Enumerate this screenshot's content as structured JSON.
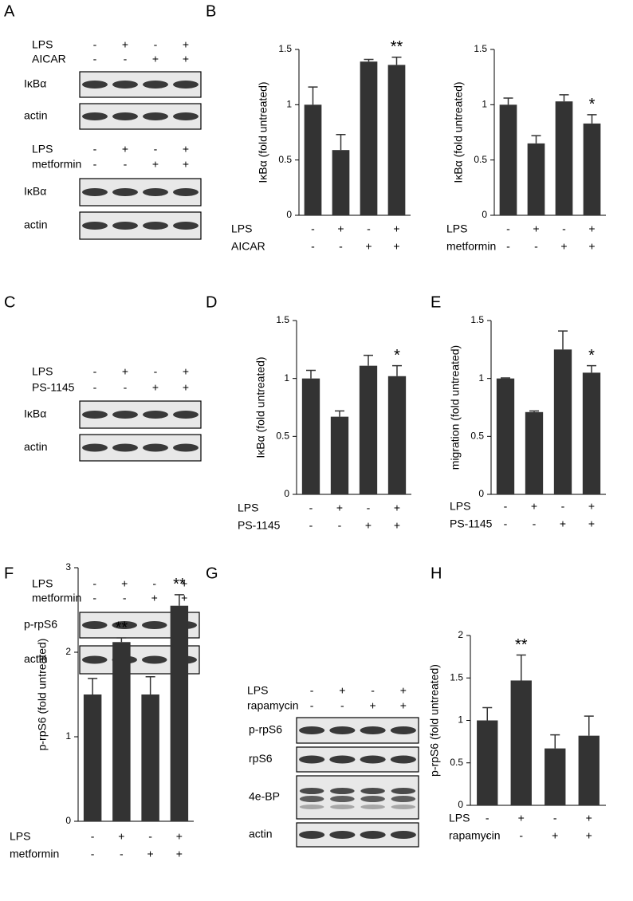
{
  "panels": [
    "A",
    "B",
    "C",
    "D",
    "E",
    "F",
    "G",
    "H"
  ],
  "blots": [
    {
      "conditions": [
        {
          "name": "LPS",
          "signs": [
            "-",
            "+",
            "-",
            "+"
          ]
        },
        {
          "name": "AICAR",
          "signs": [
            "-",
            "-",
            "+",
            "+"
          ]
        }
      ],
      "rows": [
        "IκBα",
        "actin"
      ]
    },
    {
      "conditions": [
        {
          "name": "LPS",
          "signs": [
            "-",
            "+",
            "-",
            "+"
          ]
        },
        {
          "name": "metformin",
          "signs": [
            "-",
            "-",
            "+",
            "+"
          ]
        }
      ],
      "rows": [
        "IκBα",
        "actin"
      ]
    },
    {
      "conditions": [
        {
          "name": "LPS",
          "signs": [
            "-",
            "+",
            "-",
            "+"
          ]
        },
        {
          "name": "PS-1145",
          "signs": [
            "-",
            "-",
            "+",
            "+"
          ]
        }
      ],
      "rows": [
        "IκBα",
        "actin"
      ]
    },
    {
      "conditions": [
        {
          "name": "LPS",
          "signs": [
            "-",
            "+",
            "-",
            "+"
          ]
        },
        {
          "name": "metformin",
          "signs": [
            "-",
            "-",
            "+",
            "+"
          ]
        }
      ],
      "rows": [
        "p-rpS6",
        "actin"
      ]
    },
    {
      "conditions": [
        {
          "name": "LPS",
          "signs": [
            "-",
            "+",
            "-",
            "+"
          ]
        },
        {
          "name": "rapamycin",
          "signs": [
            "-",
            "-",
            "+",
            "+"
          ]
        }
      ],
      "rows": [
        "p-rpS6",
        "rpS6",
        "4e-BP",
        "actin"
      ]
    }
  ],
  "chart_data": [
    {
      "type": "bar",
      "y_label": "IκBα (fold untreated)",
      "color": "#333333",
      "ylim": [
        0,
        1.5
      ],
      "yticks": [
        0,
        0.5,
        1,
        1.5
      ],
      "conditions": [
        {
          "name": "LPS",
          "signs": [
            "-",
            "+",
            "-",
            "+"
          ]
        },
        {
          "name": "AICAR",
          "signs": [
            "-",
            "-",
            "+",
            "+"
          ]
        }
      ],
      "values": [
        1.0,
        0.59,
        1.39,
        1.36
      ],
      "errors": [
        0.16,
        0.14,
        0.02,
        0.07
      ],
      "markers": [
        null,
        null,
        null,
        "**"
      ]
    },
    {
      "type": "bar",
      "y_label": "IκBα (fold untreated)",
      "color": "#333333",
      "ylim": [
        0,
        1.5
      ],
      "yticks": [
        0,
        0.5,
        1,
        1.5
      ],
      "conditions": [
        {
          "name": "LPS",
          "signs": [
            "-",
            "+",
            "-",
            "+"
          ]
        },
        {
          "name": "metformin",
          "signs": [
            "-",
            "-",
            "+",
            "+"
          ]
        }
      ],
      "values": [
        1.0,
        0.65,
        1.03,
        0.83
      ],
      "errors": [
        0.06,
        0.07,
        0.06,
        0.08
      ],
      "markers": [
        null,
        null,
        null,
        "*"
      ]
    },
    {
      "type": "bar",
      "y_label": "IκBα (fold untreated)",
      "color": "#333333",
      "ylim": [
        0,
        1.5
      ],
      "yticks": [
        0,
        0.5,
        1,
        1.5
      ],
      "conditions": [
        {
          "name": "LPS",
          "signs": [
            "-",
            "+",
            "-",
            "+"
          ]
        },
        {
          "name": "PS-1145",
          "signs": [
            "-",
            "-",
            "+",
            "+"
          ]
        }
      ],
      "values": [
        1.0,
        0.67,
        1.11,
        1.02
      ],
      "errors": [
        0.07,
        0.05,
        0.09,
        0.09
      ],
      "markers": [
        null,
        null,
        null,
        "*"
      ]
    },
    {
      "type": "bar",
      "y_label": "migration (fold untreated)",
      "color": "#333333",
      "ylim": [
        0,
        1.5
      ],
      "yticks": [
        0,
        0.5,
        1,
        1.5
      ],
      "conditions": [
        {
          "name": "LPS",
          "signs": [
            "-",
            "+",
            "-",
            "+"
          ]
        },
        {
          "name": "PS-1145",
          "signs": [
            "-",
            "-",
            "+",
            "+"
          ]
        }
      ],
      "values": [
        1.0,
        0.71,
        1.25,
        1.05
      ],
      "errors": [
        0.005,
        0.01,
        0.16,
        0.06
      ],
      "markers": [
        null,
        null,
        null,
        "*"
      ]
    },
    {
      "type": "bar",
      "y_label": "p-rpS6 (fold untreated)",
      "color": "#333333",
      "ylim": [
        0,
        3
      ],
      "yticks": [
        0,
        1,
        2,
        3
      ],
      "conditions": [
        {
          "name": "LPS",
          "signs": [
            "-",
            "+",
            "-",
            "+"
          ]
        },
        {
          "name": "metformin",
          "signs": [
            "-",
            "-",
            "+",
            "+"
          ]
        }
      ],
      "values": [
        1.5,
        2.12,
        1.5,
        2.55
      ],
      "errors": [
        0.19,
        0.05,
        0.21,
        0.13
      ],
      "markers": [
        null,
        "**",
        null,
        "**"
      ]
    },
    {
      "type": "bar",
      "y_label": "p-rpS6 (fold untreated)",
      "color": "#333333",
      "ylim": [
        0,
        2
      ],
      "yticks": [
        0,
        0.5,
        1,
        1.5,
        2
      ],
      "conditions": [
        {
          "name": "LPS",
          "signs": [
            "-",
            "+",
            "-",
            "+"
          ]
        },
        {
          "name": "rapamycin",
          "signs": [
            "-",
            "-",
            "+",
            "+"
          ]
        }
      ],
      "values": [
        1.0,
        1.47,
        0.67,
        0.82
      ],
      "errors": [
        0.15,
        0.3,
        0.16,
        0.23
      ],
      "markers": [
        null,
        "**",
        null,
        null
      ]
    }
  ]
}
